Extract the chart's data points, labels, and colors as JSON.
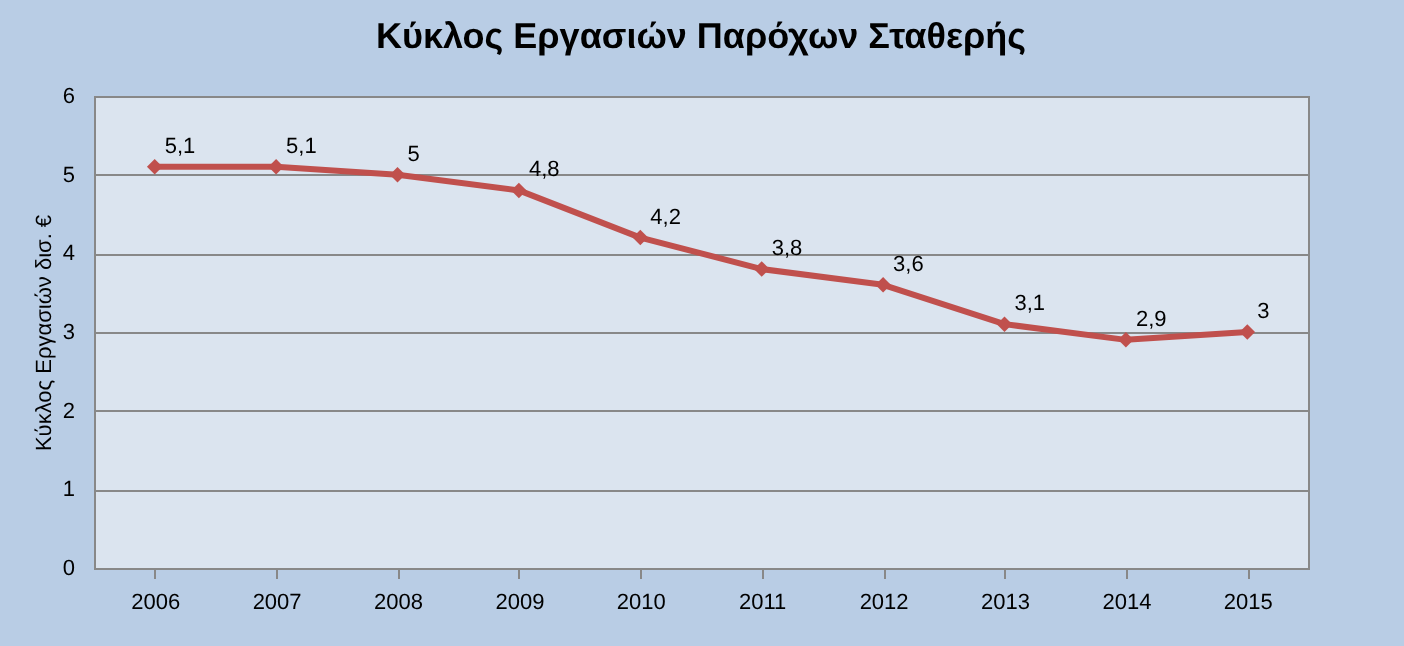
{
  "chart_data": {
    "type": "line",
    "title": "Κύκλος Εργασιών Παρόχων Σταθερής",
    "ylabel": "Κύκλος Εργασιών δισ. €",
    "categories": [
      "2006",
      "2007",
      "2008",
      "2009",
      "2010",
      "2011",
      "2012",
      "2013",
      "2014",
      "2015"
    ],
    "series": [
      {
        "color": "#c0504d",
        "values": [
          5.1,
          5.1,
          5.0,
          4.8,
          4.2,
          3.8,
          3.6,
          3.1,
          2.9,
          3.0
        ],
        "value_labels": [
          "5,1",
          "5,1",
          "5",
          "4,8",
          "4,2",
          "3,8",
          "3,6",
          "3,1",
          "2,9",
          "3"
        ]
      }
    ],
    "ylim": [
      0,
      6
    ],
    "yticks": [
      0,
      1,
      2,
      3,
      4,
      5,
      6
    ],
    "grid": "y",
    "marker": "diamond",
    "line_style": "solid",
    "legend": false
  }
}
